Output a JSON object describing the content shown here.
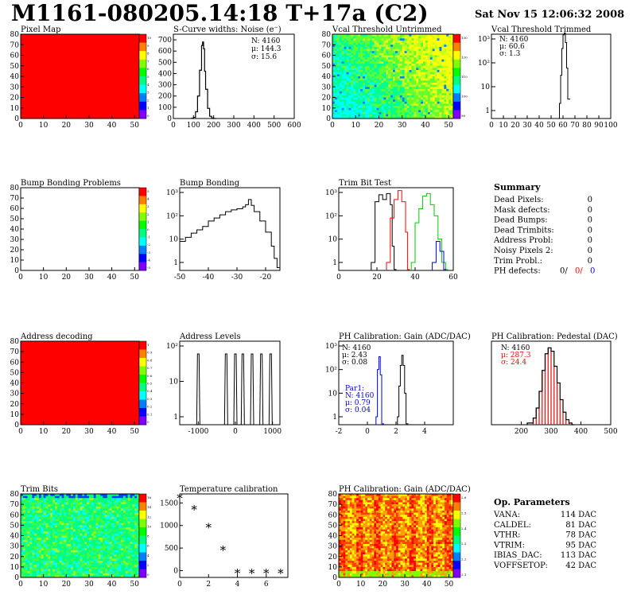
{
  "header": {
    "title": "M1161-080205.14:18 T+17a (C2)",
    "date": "Sat Nov 15 12:06:32 2008"
  },
  "colors": {
    "red": "#ff0000",
    "green": "#00cc00",
    "blue": "#0000ee",
    "black": "#000000"
  },
  "chart_data": [
    {
      "id": "pixelmap",
      "type": "heatmap",
      "title": "Pixel Map",
      "xlim": [
        0,
        52
      ],
      "ylim": [
        0,
        80
      ],
      "xticks": [
        0,
        10,
        20,
        30,
        40,
        50
      ],
      "yticks": [
        0,
        10,
        20,
        30,
        40,
        50,
        60,
        70,
        80
      ],
      "colorbar_ticks": [
        "10",
        "9",
        "8",
        "7",
        "6",
        "5",
        "4",
        "3",
        "2",
        "1",
        "0"
      ],
      "uniform_color": "#ff0000"
    },
    {
      "id": "noise",
      "type": "histogram",
      "title": "S-Curve widths: Noise (e⁻)",
      "xlim": [
        0,
        600
      ],
      "ylim": [
        0,
        750
      ],
      "xticks": [
        0,
        100,
        200,
        300,
        400,
        500,
        600
      ],
      "yticks": [
        0,
        100,
        200,
        300,
        400,
        500,
        600,
        700
      ],
      "stats": [
        "N: 4160",
        "μ: 144.3",
        "σ: 15.6"
      ],
      "series": [
        {
          "name": "",
          "color": "#000000",
          "x": [
            90,
            100,
            110,
            120,
            130,
            140,
            145,
            150,
            155,
            160,
            170,
            180,
            190,
            200
          ],
          "y": [
            2,
            10,
            60,
            200,
            430,
            650,
            680,
            620,
            420,
            260,
            90,
            20,
            5,
            0
          ]
        }
      ]
    },
    {
      "id": "vcalun",
      "type": "heatmap",
      "title": "Vcal Threshold Untrimmed",
      "xlim": [
        0,
        52
      ],
      "ylim": [
        0,
        80
      ],
      "xticks": [
        0,
        10,
        20,
        30,
        40,
        50
      ],
      "yticks": [
        0,
        10,
        20,
        30,
        40,
        50,
        60,
        70,
        80
      ],
      "colorbar_ticks": [
        "130",
        "120",
        "110",
        "100",
        "90"
      ],
      "style": "noisy-gradient"
    },
    {
      "id": "vcaltr",
      "type": "histogram",
      "title": "Vcal Threshold Trimmed",
      "xlim": [
        0,
        100
      ],
      "log": true,
      "xticks": [
        0,
        10,
        20,
        30,
        40,
        50,
        60,
        70,
        80,
        90,
        100
      ],
      "yticks": [
        "10³",
        "10²",
        "10",
        "1"
      ],
      "stats": [
        "N: 4160",
        "μ: 60.6",
        "σ:  1.3"
      ],
      "series": [
        {
          "name": "",
          "color": "#000000",
          "x": [
            57,
            58,
            59,
            60,
            61,
            62,
            63,
            64
          ],
          "y": [
            2,
            30,
            400,
            1500,
            1800,
            700,
            60,
            3
          ]
        }
      ]
    },
    {
      "id": "bumpprob",
      "type": "heatmap",
      "title": "Bump Bonding Problems",
      "xlim": [
        0,
        52
      ],
      "ylim": [
        0,
        80
      ],
      "xticks": [
        0,
        10,
        20,
        30,
        40,
        50
      ],
      "yticks": [
        0,
        10,
        20,
        30,
        40,
        50,
        60,
        70,
        80
      ],
      "colorbar_ticks": [
        "5",
        "4",
        "3",
        "2",
        "1",
        "0",
        "-1",
        "-2",
        "-3",
        "-4",
        "-5"
      ],
      "uniform_color": "#ffffff"
    },
    {
      "id": "bump",
      "type": "histogram",
      "title": "Bump Bonding",
      "xlim": [
        -50,
        -15
      ],
      "log": true,
      "xticks": [
        -50,
        -40,
        -30,
        -20
      ],
      "yticks": [
        "10³",
        "10²",
        "10",
        "1"
      ],
      "series": [
        {
          "name": "",
          "color": "#000000",
          "x": [
            -50,
            -48,
            -46,
            -44,
            -42,
            -40,
            -38,
            -36,
            -34,
            -32,
            -30,
            -28,
            -27,
            -26,
            -25,
            -24,
            -22,
            -20,
            -18,
            -17,
            -16
          ],
          "y": [
            8,
            12,
            18,
            25,
            35,
            60,
            80,
            110,
            150,
            180,
            200,
            240,
            300,
            500,
            280,
            150,
            60,
            20,
            5,
            1.5,
            0.6
          ]
        }
      ]
    },
    {
      "id": "trimbit",
      "type": "histogram",
      "title": "Trim Bit Test",
      "xlim": [
        0,
        60
      ],
      "log": true,
      "xticks": [
        0,
        20,
        40,
        60
      ],
      "yticks": [
        "10³",
        "10²",
        "10",
        "1"
      ],
      "series": [
        {
          "name": "",
          "color": "#000000",
          "x": [
            17,
            19,
            21,
            23,
            25,
            27,
            28,
            29
          ],
          "y": [
            1,
            400,
            800,
            500,
            900,
            300,
            5,
            0.5
          ]
        },
        {
          "name": "",
          "color": "#ff0000",
          "x": [
            25,
            27,
            29,
            31,
            33,
            35,
            36
          ],
          "y": [
            1,
            80,
            500,
            1200,
            400,
            20,
            0.5
          ]
        },
        {
          "name": "",
          "color": "#00cc00",
          "x": [
            38,
            40,
            42,
            44,
            46,
            48,
            50,
            52,
            54,
            56
          ],
          "y": [
            1,
            50,
            200,
            700,
            900,
            300,
            100,
            10,
            1,
            0.5
          ]
        },
        {
          "name": "",
          "color": "#0000ee",
          "x": [
            49,
            51,
            53,
            55
          ],
          "y": [
            1,
            8,
            3,
            0.5
          ]
        }
      ]
    },
    {
      "id": "summary",
      "type": "table",
      "title": "Summary",
      "rows": [
        [
          "Dead Pixels:",
          "0"
        ],
        [
          "Mask defects:",
          "0"
        ],
        [
          "Dead Bumps:",
          "0"
        ],
        [
          "Dead Trimbits:",
          "0"
        ],
        [
          "Address Probl:",
          "0"
        ],
        [
          "Noisy Pixels 2:",
          "0"
        ],
        [
          "Trim Probl.:",
          "0"
        ]
      ],
      "ph_label": "PH defects:",
      "ph_values": [
        {
          "v": "0/",
          "c": "#000000"
        },
        {
          "v": "0/",
          "c": "#ff0000"
        },
        {
          "v": "0",
          "c": "#0000ee"
        }
      ]
    },
    {
      "id": "addrdec",
      "type": "heatmap",
      "title": "Address decoding",
      "xlim": [
        0,
        52
      ],
      "ylim": [
        0,
        80
      ],
      "xticks": [
        0,
        10,
        20,
        30,
        40,
        50
      ],
      "yticks": [
        0,
        10,
        20,
        30,
        40,
        50,
        60,
        70,
        80
      ],
      "colorbar_ticks": [
        "1",
        "0.9",
        "0.8",
        "0.7",
        "0.6",
        "0.5",
        "0.4",
        "0.3",
        "0.2",
        "0.1",
        "0"
      ],
      "uniform_color": "#ff0000"
    },
    {
      "id": "addrlev",
      "type": "spikes",
      "title": "Address Levels",
      "xlim": [
        -1500,
        1200
      ],
      "log": true,
      "xticks": [
        -1000,
        0,
        1000
      ],
      "yticks": [
        "10²",
        "10",
        "1"
      ],
      "peaks": [
        -1000,
        -250,
        0,
        200,
        450,
        700,
        950
      ]
    },
    {
      "id": "phgain",
      "type": "histogram",
      "title": "PH Calibration: Gain (ADC/DAC)",
      "xlim": [
        -2,
        6
      ],
      "log": true,
      "xticks": [
        -2,
        0,
        2,
        4
      ],
      "yticks": [
        "10³",
        "10²",
        "10",
        "1"
      ],
      "stats": [
        "N: 4160",
        "μ: 2.43",
        "σ: 0.08"
      ],
      "stats2": [
        "Par1:",
        "N: 4160",
        "μ: 0.79",
        "σ: 0.04"
      ],
      "series": [
        {
          "name": "",
          "color": "#000000",
          "x": [
            2.1,
            2.2,
            2.3,
            2.4,
            2.5,
            2.6,
            2.7
          ],
          "y": [
            1,
            20,
            150,
            400,
            150,
            10,
            0.5
          ]
        },
        {
          "name": "",
          "color": "#0000ee",
          "x": [
            0.6,
            0.7,
            0.8,
            0.9,
            1.0
          ],
          "y": [
            1,
            100,
            350,
            60,
            0.5
          ]
        }
      ]
    },
    {
      "id": "phped",
      "type": "histogram",
      "title": "PH Calibration: Pedestal (DAC)",
      "xlim": [
        100,
        500
      ],
      "ylim": [
        0,
        100
      ],
      "xticks": [
        200,
        300,
        400,
        500
      ],
      "stats": [
        "N: 4160",
        "μ: 287.3",
        "σ: 24.4"
      ],
      "series": [
        {
          "name": "",
          "color": "#000000",
          "x": [
            220,
            240,
            250,
            260,
            270,
            280,
            290,
            300,
            310,
            320,
            330,
            340,
            350,
            360,
            370
          ],
          "y": [
            2,
            8,
            20,
            40,
            65,
            85,
            92,
            88,
            70,
            50,
            30,
            15,
            6,
            2,
            0
          ]
        }
      ]
    },
    {
      "id": "trimbits",
      "type": "heatmap",
      "title": "Trim Bits",
      "xlim": [
        0,
        52
      ],
      "ylim": [
        0,
        80
      ],
      "xticks": [
        0,
        10,
        20,
        30,
        40,
        50
      ],
      "yticks": [
        0,
        10,
        20,
        30,
        40,
        50,
        60,
        70,
        80
      ],
      "colorbar_ticks": [
        "16",
        "14",
        "12",
        "10",
        "8",
        "6",
        "4",
        "2",
        "0"
      ],
      "style": "noisy-green"
    },
    {
      "id": "temp",
      "type": "scatter",
      "title": "Temperature calibration",
      "xlim": [
        0,
        7.5
      ],
      "ylim": [
        -150,
        1700
      ],
      "xticks": [
        0,
        2,
        4,
        6
      ],
      "yticks": [
        0,
        500,
        1000,
        1500
      ],
      "x": [
        0,
        1,
        2,
        3,
        4,
        5,
        6,
        7
      ],
      "y": [
        1600,
        1350,
        950,
        450,
        -60,
        -60,
        -60,
        -60
      ]
    },
    {
      "id": "phgain2",
      "type": "heatmap",
      "title": "PH Calibration: Gain (ADC/DAC)",
      "xlim": [
        0,
        52
      ],
      "ylim": [
        0,
        80
      ],
      "xticks": [
        0,
        10,
        20,
        30,
        40,
        50
      ],
      "yticks": [
        0,
        10,
        20,
        30,
        40,
        50,
        60,
        70,
        80
      ],
      "colorbar_ticks": [
        "2.6",
        "2.5",
        "2.4",
        "2.3",
        "2.2",
        "2.1"
      ],
      "style": "noisy-warm"
    },
    {
      "id": "opparams",
      "type": "table",
      "title": "Op. Parameters",
      "rows": [
        [
          "VANA:",
          "114 DAC"
        ],
        [
          "CALDEL:",
          "81 DAC"
        ],
        [
          "VTHR:",
          "78 DAC"
        ],
        [
          "VTRIM:",
          "95 DAC"
        ],
        [
          "IBIAS_DAC:",
          "113 DAC"
        ],
        [
          "VOFFSETOP:",
          "42 DAC"
        ]
      ]
    }
  ]
}
